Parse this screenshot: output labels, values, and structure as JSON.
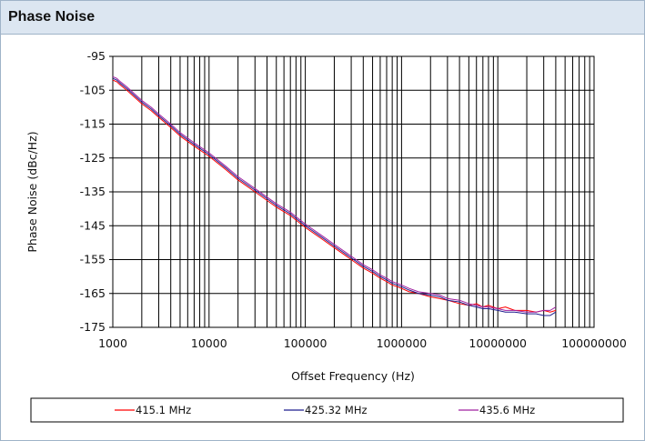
{
  "panel": {
    "title": "Phase Noise"
  },
  "colors": {
    "header_bg": "#dce6f1",
    "border": "#9fb3c8",
    "grid": "#000000"
  },
  "chart_data": {
    "type": "line",
    "title": "",
    "xlabel": "Offset Frequency (Hz)",
    "ylabel": "Phase Noise (dBc/Hz)",
    "x_scale": "log",
    "xlim": [
      1000,
      100000000
    ],
    "ylim": [
      -175,
      -95
    ],
    "x_ticks": [
      1000,
      10000,
      100000,
      1000000,
      10000000,
      100000000
    ],
    "x_tick_labels": [
      "1000",
      "10000",
      "100000",
      "1000000",
      "10000000",
      "100000000"
    ],
    "y_ticks": [
      -95,
      -105,
      -115,
      -125,
      -135,
      -145,
      -155,
      -165,
      -175
    ],
    "y_tick_labels": [
      "-95",
      "-105",
      "-115",
      "-125",
      "-135",
      "-145",
      "-155",
      "-165",
      "-175"
    ],
    "grid": true,
    "legend_position": "bottom",
    "series": [
      {
        "name": "415.1 MHz",
        "color": "#ff0000",
        "x": [
          1000,
          1100,
          1200,
          1400,
          1600,
          2000,
          2500,
          3000,
          4000,
          5000,
          7000,
          10000,
          15000,
          20000,
          30000,
          50000,
          70000,
          100000,
          150000,
          200000,
          300000,
          400000,
          500000,
          600000,
          700000,
          800000,
          900000,
          1000000,
          1200000,
          1500000,
          2000000,
          2500000,
          3000000,
          4000000,
          5000000,
          6000000,
          7000000,
          8000000,
          10000000,
          12000000,
          15000000,
          20000000,
          25000000,
          30000000,
          35000000,
          40000000
        ],
        "y": [
          -102,
          -102.5,
          -103.5,
          -105,
          -106.5,
          -109,
          -111,
          -113,
          -116,
          -118.5,
          -121.5,
          -124.5,
          -128.5,
          -131.5,
          -135,
          -139.5,
          -142,
          -145.5,
          -149,
          -151.5,
          -155,
          -157.5,
          -159,
          -160.5,
          -161.5,
          -162.5,
          -163,
          -163.5,
          -164.5,
          -165,
          -166,
          -166.5,
          -167,
          -168,
          -168.5,
          -168,
          -169,
          -168.5,
          -169.5,
          -169,
          -170,
          -170,
          -170.5,
          -170,
          -170.5,
          -170
        ]
      },
      {
        "name": "425.32 MHz",
        "color": "#1f1f8f",
        "x": [
          1000,
          1100,
          1200,
          1400,
          1600,
          2000,
          2500,
          3000,
          4000,
          5000,
          7000,
          10000,
          15000,
          20000,
          30000,
          50000,
          70000,
          100000,
          150000,
          200000,
          300000,
          400000,
          500000,
          600000,
          700000,
          800000,
          900000,
          1000000,
          1200000,
          1500000,
          2000000,
          2500000,
          3000000,
          4000000,
          5000000,
          6000000,
          7000000,
          8000000,
          10000000,
          12000000,
          15000000,
          20000000,
          25000000,
          30000000,
          35000000,
          40000000
        ],
        "y": [
          -101.5,
          -102,
          -103,
          -104.5,
          -106,
          -108.5,
          -110.5,
          -112.5,
          -115.5,
          -118,
          -121,
          -124,
          -128,
          -131,
          -134.5,
          -139,
          -141.5,
          -145,
          -148.5,
          -151,
          -154.5,
          -157,
          -158.5,
          -160,
          -161,
          -162,
          -162.5,
          -163,
          -164,
          -165,
          -165.5,
          -166,
          -167,
          -167.5,
          -168.5,
          -169,
          -169.5,
          -169.5,
          -170,
          -170.5,
          -170.5,
          -171,
          -171,
          -171.5,
          -171.5,
          -170.5
        ]
      },
      {
        "name": "435.6 MHz",
        "color": "#a020a0",
        "x": [
          1000,
          1100,
          1200,
          1400,
          1600,
          2000,
          2500,
          3000,
          4000,
          5000,
          7000,
          10000,
          15000,
          20000,
          30000,
          50000,
          70000,
          100000,
          150000,
          200000,
          300000,
          400000,
          500000,
          600000,
          700000,
          800000,
          900000,
          1000000,
          1200000,
          1500000,
          2000000,
          2500000,
          3000000,
          4000000,
          5000000,
          6000000,
          7000000,
          8000000,
          10000000,
          12000000,
          15000000,
          20000000,
          25000000,
          30000000,
          35000000,
          40000000
        ],
        "y": [
          -101,
          -101.5,
          -102.5,
          -104,
          -105.5,
          -108,
          -110,
          -112,
          -115,
          -117.5,
          -120.5,
          -123.5,
          -127.5,
          -130.5,
          -134,
          -138.5,
          -141,
          -144.5,
          -148,
          -150.5,
          -154,
          -156.5,
          -158,
          -159.5,
          -160.5,
          -161.5,
          -162,
          -162.5,
          -163.5,
          -164.5,
          -165,
          -165.5,
          -166.5,
          -167,
          -168,
          -168.5,
          -169,
          -169,
          -169.5,
          -170,
          -170,
          -170.5,
          -170.5,
          -170,
          -170,
          -169
        ]
      }
    ]
  }
}
